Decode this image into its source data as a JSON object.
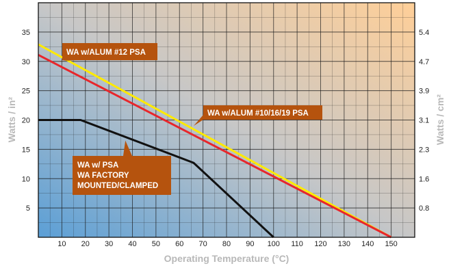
{
  "chart_data": {
    "type": "line",
    "title": "",
    "xlabel": "Operating Temperature (°C)",
    "ylabel": "Watts / in²",
    "y2label": "Watts / cm²",
    "xlim": [
      0,
      160
    ],
    "ylim": [
      0,
      40
    ],
    "grid": true,
    "x_ticks": [
      10,
      20,
      30,
      40,
      50,
      60,
      70,
      80,
      90,
      100,
      110,
      120,
      130,
      140,
      150
    ],
    "y_ticks": [
      5,
      10,
      15,
      20,
      25,
      30,
      35
    ],
    "y2_ticks": [
      {
        "label": "0.8",
        "y": 5
      },
      {
        "label": "1.6",
        "y": 10
      },
      {
        "label": "2.3",
        "y": 15
      },
      {
        "label": "3.1",
        "y": 20
      },
      {
        "label": "3.9",
        "y": 25
      },
      {
        "label": "4.7",
        "y": 30
      },
      {
        "label": "5.4",
        "y": 35
      }
    ],
    "series": [
      {
        "color": "#ffea00",
        "x": [
          0,
          150
        ],
        "y": [
          32.9,
          0
        ]
      },
      {
        "color": "#e8262b",
        "x": [
          0,
          150
        ],
        "y": [
          31.1,
          0
        ]
      },
      {
        "color": "#111111",
        "x": [
          0,
          18,
          66,
          100
        ],
        "y": [
          20,
          20,
          12.7,
          0
        ]
      }
    ],
    "annotations": [
      {
        "lines": [
          "WA w/ALUM #12 PSA"
        ],
        "box": "#b5530e",
        "pointer_to": [
          8,
          30
        ]
      },
      {
        "lines": [
          "WA w/ALUM #10/16/19 PSA"
        ],
        "box": "#b5530e",
        "pointer_to": [
          66,
          19
        ]
      },
      {
        "lines": [
          "WA w/ PSA",
          "WA FACTORY",
          "MOUNTED/CLAMPED"
        ],
        "box": "#b5530e",
        "pointer_to": [
          37,
          16.5
        ]
      }
    ]
  }
}
